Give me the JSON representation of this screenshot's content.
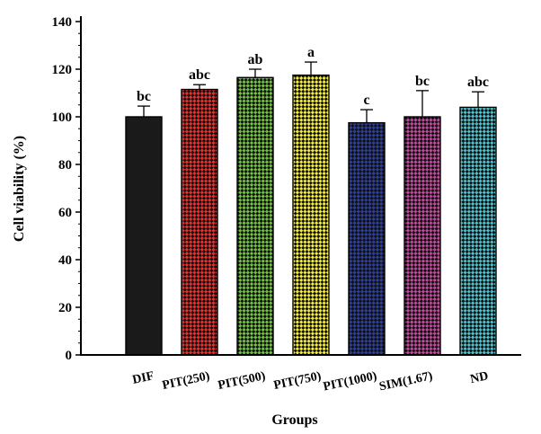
{
  "chart_data": {
    "type": "bar",
    "xlabel": "Groups",
    "ylabel": "Cell viability (%)",
    "ylim": [
      0,
      140
    ],
    "yticks": [
      0,
      20,
      40,
      60,
      80,
      100,
      120,
      140
    ],
    "grid": false,
    "legend": "none",
    "categories": [
      "DIF",
      "PIT(250)",
      "PIT(500)",
      "PIT(750)",
      "PIT(1000)",
      "SIM(1.67)",
      "ND"
    ],
    "values": [
      100,
      111.5,
      116.5,
      117.5,
      97.5,
      100,
      104
    ],
    "errors": [
      4.5,
      2,
      3.5,
      5.5,
      5.5,
      11,
      6.5
    ],
    "significance": [
      "bc",
      "abc",
      "ab",
      "a",
      "c",
      "bc",
      "abc"
    ],
    "colors": [
      "#1a1a1a",
      "#e8302d",
      "#72c242",
      "#f3ec3a",
      "#2e3f9a",
      "#c04a9b",
      "#4fc0cc"
    ]
  }
}
